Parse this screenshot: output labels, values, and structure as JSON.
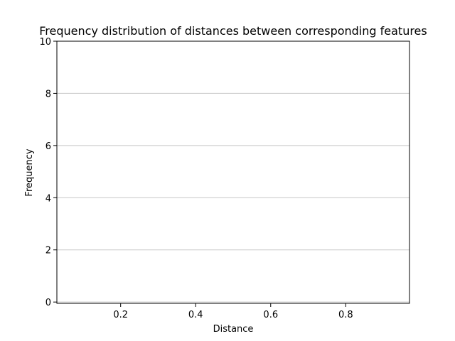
{
  "chart_data": {
    "type": "histogram",
    "title": "Frequency distribution of distances between corresponding features",
    "xlabel": "Distance",
    "ylabel": "Frequency",
    "xlim": [
      0.03,
      0.97
    ],
    "xticks": [
      0.2,
      0.4,
      0.6,
      0.8
    ],
    "ylim": [
      -0.05,
      10
    ],
    "yticks": [
      0,
      2,
      4,
      6,
      8,
      10
    ],
    "grid": "y"
  }
}
